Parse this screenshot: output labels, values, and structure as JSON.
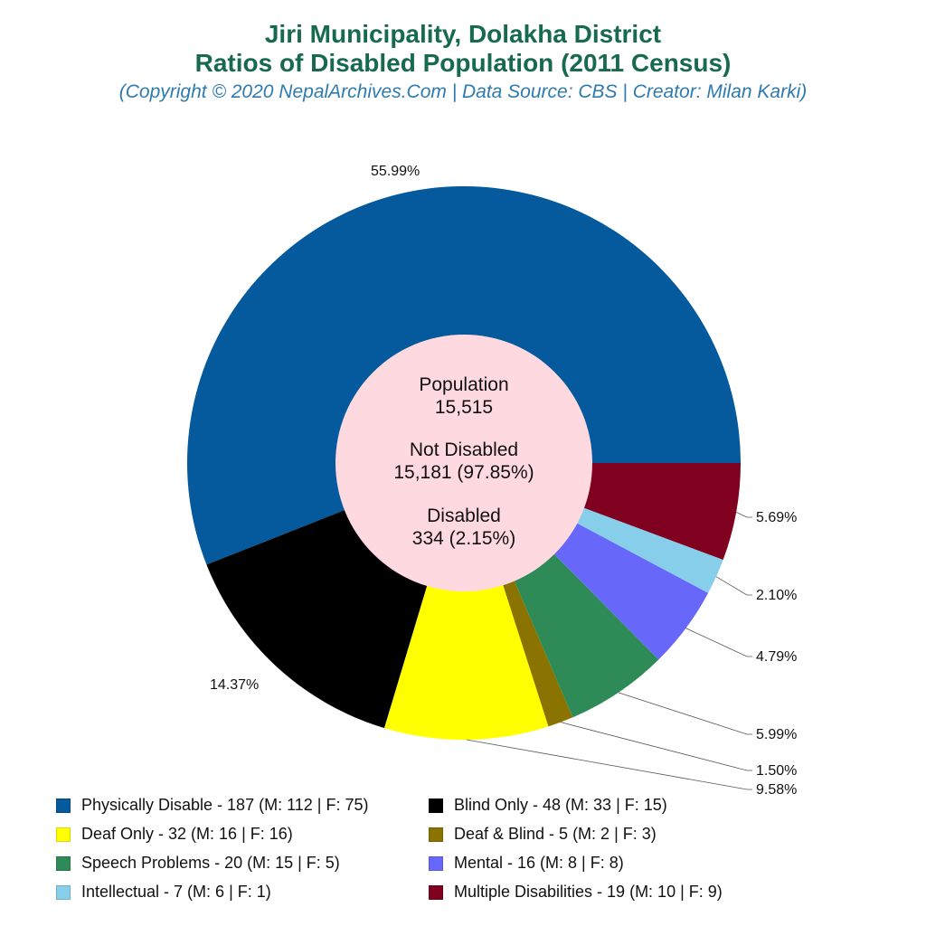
{
  "header": {
    "title_line1": "Jiri Municipality, Dolakha District",
    "title_line2": "Ratios of Disabled Population (2011 Census)",
    "subtitle": "(Copyright © 2020 NepalArchives.Com | Data Source: CBS | Creator: Milan Karki)"
  },
  "center": {
    "population_label": "Population",
    "population_value": "15,515",
    "not_disabled_label": "Not Disabled",
    "not_disabled_value": "15,181 (97.85%)",
    "disabled_label": "Disabled",
    "disabled_value": "334 (2.15%)"
  },
  "slice_labels": [
    "55.99%",
    "14.37%",
    "9.58%",
    "1.50%",
    "5.99%",
    "4.79%",
    "2.10%",
    "5.69%"
  ],
  "legend": [
    {
      "label": "Physically Disable - 187 (M: 112 | F: 75)",
      "color": "#045a9c"
    },
    {
      "label": "Blind Only - 48 (M: 33 | F: 15)",
      "color": "#000000"
    },
    {
      "label": "Deaf Only - 32 (M: 16 | F: 16)",
      "color": "#ffff00"
    },
    {
      "label": "Deaf & Blind - 5 (M: 2 | F: 3)",
      "color": "#8b7300"
    },
    {
      "label": "Speech Problems - 20 (M: 15 | F: 5)",
      "color": "#2e8b57"
    },
    {
      "label": "Mental - 16 (M: 8 | F: 8)",
      "color": "#6767fa"
    },
    {
      "label": "Intellectual - 7 (M: 6 | F: 1)",
      "color": "#87ceeb"
    },
    {
      "label": "Multiple Disabilities - 19 (M: 10 | F: 9)",
      "color": "#800020"
    }
  ],
  "chart_data": {
    "type": "pie",
    "subtype": "donut",
    "title": "Jiri Municipality, Dolakha District — Ratios of Disabled Population (2011 Census)",
    "subtitle": "(Copyright © 2020 NepalArchives.Com | Data Source: CBS | Creator: Milan Karki)",
    "categories": [
      "Physically Disable",
      "Blind Only",
      "Deaf Only",
      "Deaf & Blind",
      "Speech Problems",
      "Mental",
      "Intellectual",
      "Multiple Disabilities"
    ],
    "values": [
      187,
      48,
      32,
      5,
      20,
      16,
      7,
      19
    ],
    "male": [
      112,
      33,
      16,
      2,
      15,
      8,
      6,
      10
    ],
    "female": [
      75,
      15,
      16,
      3,
      5,
      8,
      1,
      9
    ],
    "percentages": [
      55.99,
      14.37,
      9.58,
      1.5,
      5.99,
      4.79,
      2.1,
      5.69
    ],
    "colors": [
      "#045a9c",
      "#000000",
      "#ffff00",
      "#8b7300",
      "#2e8b57",
      "#6767fa",
      "#87ceeb",
      "#800020"
    ],
    "center_text": {
      "population": 15515,
      "not_disabled": 15181,
      "not_disabled_pct": 97.85,
      "disabled": 334,
      "disabled_pct": 2.15
    },
    "legend_position": "bottom"
  }
}
